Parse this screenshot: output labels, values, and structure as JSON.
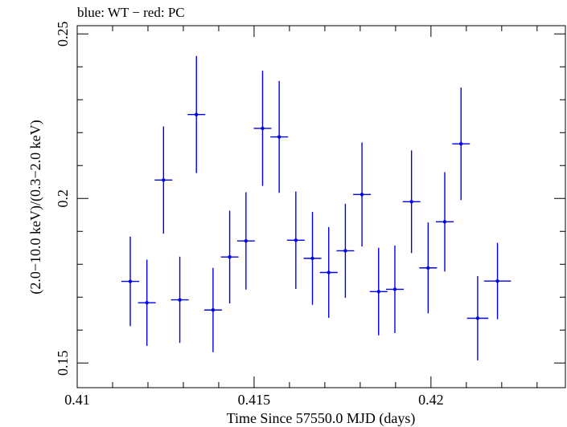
{
  "chart_data": {
    "type": "scatter",
    "title": "blue: WT − red: PC",
    "xlabel": "Time Since 57550.0 MJD (days)",
    "ylabel": "(2.0−10.0 keV)/(0.3−2.0 keV)",
    "xlim": [
      0.41,
      0.4238
    ],
    "ylim": [
      0.1425,
      0.2525
    ],
    "x_ticks": [
      {
        "value": 0.41,
        "label": "0.41"
      },
      {
        "value": 0.415,
        "label": "0.415"
      },
      {
        "value": 0.42,
        "label": "0.42"
      }
    ],
    "y_ticks": [
      {
        "value": 0.15,
        "label": "0.15"
      },
      {
        "value": 0.2,
        "label": "0.2"
      },
      {
        "value": 0.25,
        "label": "0.25"
      }
    ],
    "grid": false,
    "series": [
      {
        "color": "#0000ee",
        "points": [
          {
            "x": 0.4115,
            "xerr": 0.00025,
            "y": 0.1748,
            "yerr": 0.0136
          },
          {
            "x": 0.41197,
            "xerr": 0.00025,
            "y": 0.1683,
            "yerr": 0.0131
          },
          {
            "x": 0.41244,
            "xerr": 0.00025,
            "y": 0.2056,
            "yerr": 0.0163
          },
          {
            "x": 0.4129,
            "xerr": 0.00025,
            "y": 0.1692,
            "yerr": 0.0131
          },
          {
            "x": 0.41337,
            "xerr": 0.00025,
            "y": 0.2255,
            "yerr": 0.0178
          },
          {
            "x": 0.41384,
            "xerr": 0.00025,
            "y": 0.1661,
            "yerr": 0.0128
          },
          {
            "x": 0.41431,
            "xerr": 0.00025,
            "y": 0.1822,
            "yerr": 0.0141
          },
          {
            "x": 0.41477,
            "xerr": 0.00025,
            "y": 0.1871,
            "yerr": 0.0148
          },
          {
            "x": 0.41524,
            "xerr": 0.00025,
            "y": 0.2213,
            "yerr": 0.0175
          },
          {
            "x": 0.41571,
            "xerr": 0.00025,
            "y": 0.2187,
            "yerr": 0.017
          },
          {
            "x": 0.41618,
            "xerr": 0.00025,
            "y": 0.1873,
            "yerr": 0.0148
          },
          {
            "x": 0.41665,
            "xerr": 0.00025,
            "y": 0.1818,
            "yerr": 0.0141
          },
          {
            "x": 0.41711,
            "xerr": 0.00025,
            "y": 0.1775,
            "yerr": 0.0138
          },
          {
            "x": 0.41758,
            "xerr": 0.00025,
            "y": 0.1841,
            "yerr": 0.0143
          },
          {
            "x": 0.41805,
            "xerr": 0.00025,
            "y": 0.2012,
            "yerr": 0.0158
          },
          {
            "x": 0.41852,
            "xerr": 0.00025,
            "y": 0.1717,
            "yerr": 0.0133
          },
          {
            "x": 0.41898,
            "xerr": 0.00025,
            "y": 0.1724,
            "yerr": 0.0133
          },
          {
            "x": 0.41945,
            "xerr": 0.00025,
            "y": 0.199,
            "yerr": 0.0156
          },
          {
            "x": 0.41992,
            "xerr": 0.00025,
            "y": 0.1789,
            "yerr": 0.0138
          },
          {
            "x": 0.42039,
            "xerr": 0.00025,
            "y": 0.1929,
            "yerr": 0.0151
          },
          {
            "x": 0.42085,
            "xerr": 0.00025,
            "y": 0.2166,
            "yerr": 0.0171
          },
          {
            "x": 0.42132,
            "xerr": 0.0003,
            "y": 0.1636,
            "yerr": 0.0128
          },
          {
            "x": 0.42188,
            "xerr": 0.00038,
            "y": 0.1749,
            "yerr": 0.0116
          }
        ]
      }
    ]
  }
}
